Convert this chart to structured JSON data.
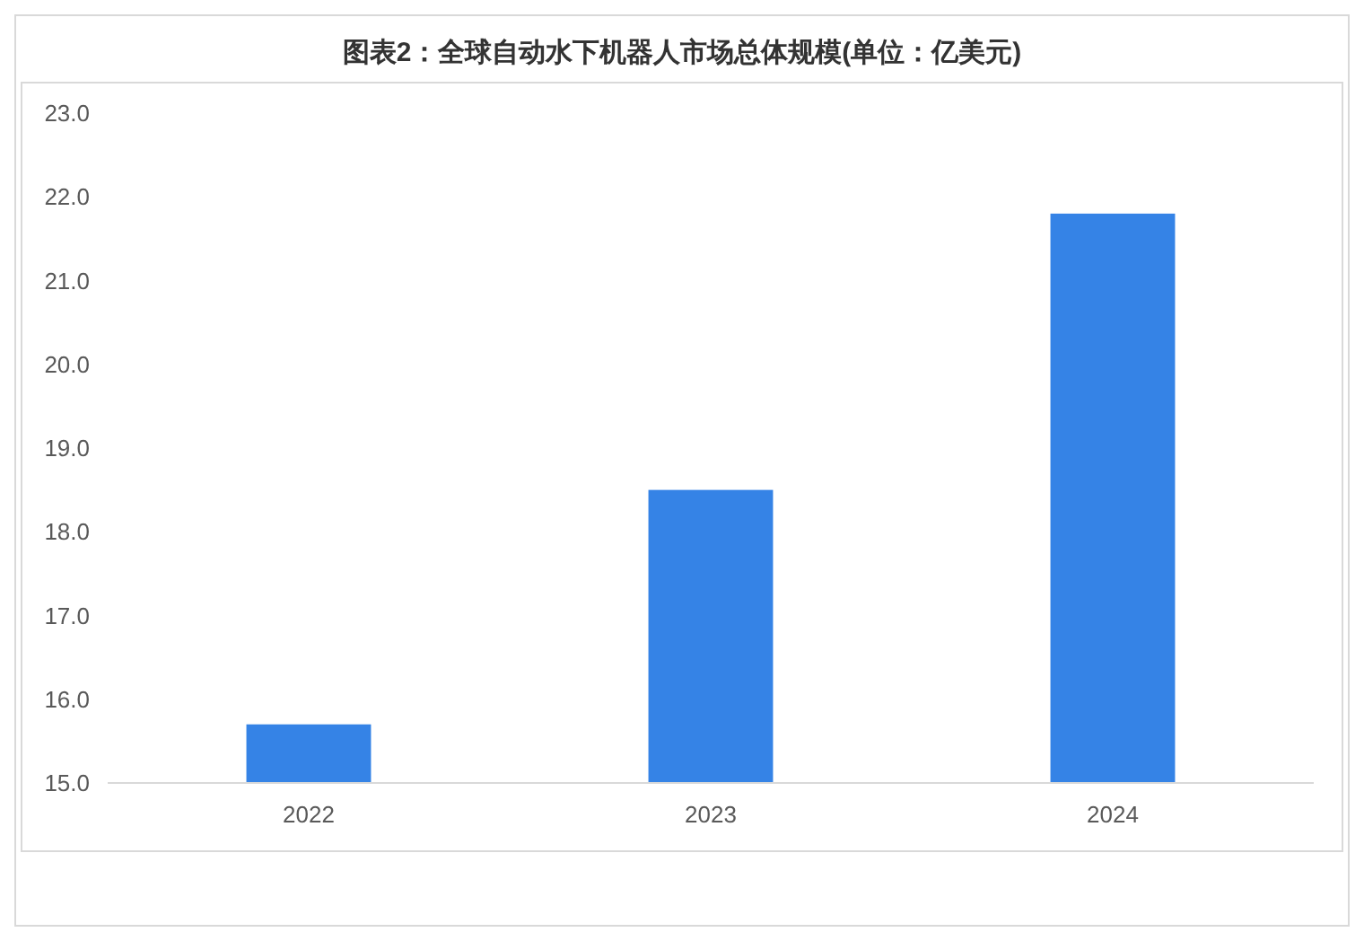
{
  "chart_data": {
    "type": "bar",
    "title": "图表2：全球自动水下机器人市场总体规模(单位：亿美元)",
    "categories": [
      "2022",
      "2023",
      "2024"
    ],
    "values": [
      15.7,
      18.5,
      21.8
    ],
    "color": "#3583e6",
    "ylim": [
      15,
      23
    ],
    "yticks": [
      {
        "value": 15,
        "label": "15.0"
      },
      {
        "value": 16,
        "label": "16.0"
      },
      {
        "value": 17,
        "label": "17.0"
      },
      {
        "value": 18,
        "label": "18.0"
      },
      {
        "value": 19,
        "label": "19.0"
      },
      {
        "value": 20,
        "label": "20.0"
      },
      {
        "value": 21,
        "label": "21.0"
      },
      {
        "value": 22,
        "label": "22.0"
      },
      {
        "value": 23,
        "label": "23.0"
      }
    ],
    "grid": false
  }
}
